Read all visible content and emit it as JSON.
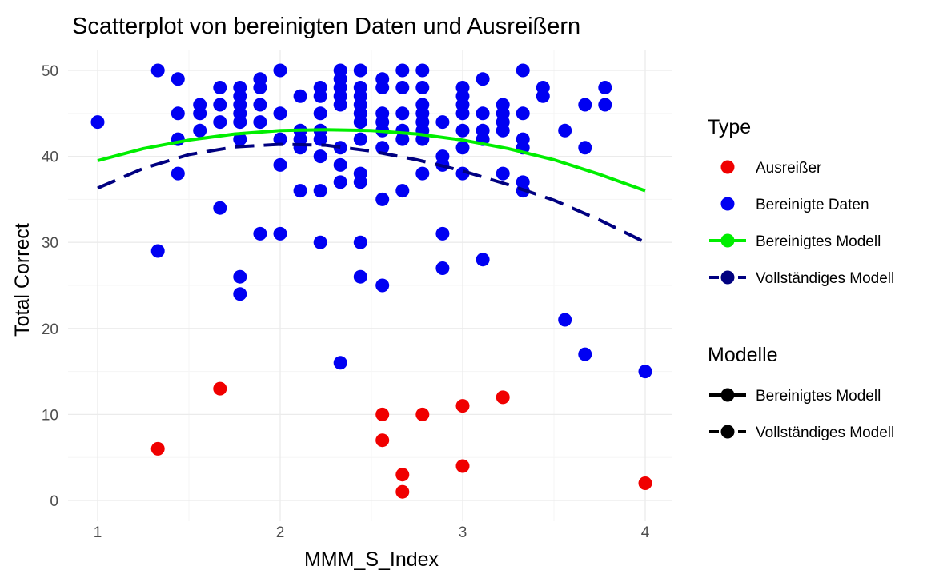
{
  "colors": {
    "outlier": "#f00000",
    "clean": "#0000f2",
    "clean_model": "#00ee00",
    "full_model": "#000080",
    "grid_major": "#ebebeb",
    "grid_minor": "#f5f5f5"
  },
  "legend": {
    "type": {
      "title": "Type",
      "items": [
        {
          "label": "Ausreißer",
          "kind": "point",
          "color": "#f00000"
        },
        {
          "label": "Bereinigte Daten",
          "kind": "point",
          "color": "#0000f2"
        },
        {
          "label": "Bereinigtes Modell",
          "kind": "line-point",
          "color": "#00ee00",
          "dash": "solid"
        },
        {
          "label": "Vollständiges Modell",
          "kind": "line-point",
          "color": "#000080",
          "dash": "dashed"
        }
      ]
    },
    "modelle": {
      "title": "Modelle",
      "items": [
        {
          "label": "Bereinigtes Modell",
          "kind": "line-point",
          "color": "#000000",
          "dash": "solid"
        },
        {
          "label": "Vollständiges Modell",
          "kind": "line-point",
          "color": "#000000",
          "dash": "dashed"
        }
      ]
    }
  },
  "chart_data": {
    "type": "scatter",
    "title": "Scatterplot von bereinigten Daten und Ausreißern",
    "xlabel": "MMM_S_Index",
    "ylabel": "Total Correct",
    "xlim": [
      1,
      4
    ],
    "ylim": [
      0,
      50
    ],
    "x_ticks": [
      "1",
      "2",
      "3",
      "4"
    ],
    "y_ticks": [
      "0",
      "10",
      "20",
      "30",
      "40",
      "50"
    ],
    "x_tick_values": [
      1,
      2,
      3,
      4
    ],
    "y_tick_values": [
      0,
      10,
      20,
      30,
      40,
      50
    ],
    "grid": true,
    "legend_position": "right",
    "series": [
      {
        "name": "Ausreißer",
        "color": "#f00000",
        "points": [
          [
            1.33,
            6
          ],
          [
            1.67,
            13
          ],
          [
            2.56,
            10
          ],
          [
            2.56,
            7
          ],
          [
            2.67,
            3
          ],
          [
            2.67,
            1
          ],
          [
            2.78,
            10
          ],
          [
            3.0,
            11
          ],
          [
            3.0,
            4
          ],
          [
            3.22,
            12
          ],
          [
            4.0,
            2
          ]
        ]
      },
      {
        "name": "Bereinigte Daten",
        "color": "#0000f2",
        "points": [
          [
            1.0,
            44
          ],
          [
            1.33,
            50
          ],
          [
            1.33,
            29
          ],
          [
            1.44,
            49
          ],
          [
            1.44,
            45
          ],
          [
            1.44,
            42
          ],
          [
            1.44,
            38
          ],
          [
            1.56,
            46
          ],
          [
            1.56,
            45
          ],
          [
            1.56,
            43
          ],
          [
            1.67,
            48
          ],
          [
            1.67,
            46
          ],
          [
            1.67,
            44
          ],
          [
            1.67,
            34
          ],
          [
            1.78,
            48
          ],
          [
            1.78,
            47
          ],
          [
            1.78,
            46
          ],
          [
            1.78,
            45
          ],
          [
            1.78,
            44
          ],
          [
            1.78,
            42
          ],
          [
            1.78,
            26
          ],
          [
            1.78,
            24
          ],
          [
            1.89,
            49
          ],
          [
            1.89,
            48
          ],
          [
            1.89,
            46
          ],
          [
            1.89,
            44
          ],
          [
            1.89,
            31
          ],
          [
            2.0,
            50
          ],
          [
            2.0,
            45
          ],
          [
            2.0,
            42
          ],
          [
            2.0,
            39
          ],
          [
            2.0,
            31
          ],
          [
            2.11,
            47
          ],
          [
            2.11,
            43
          ],
          [
            2.11,
            42
          ],
          [
            2.11,
            41
          ],
          [
            2.11,
            36
          ],
          [
            2.22,
            48
          ],
          [
            2.22,
            47
          ],
          [
            2.22,
            45
          ],
          [
            2.22,
            43
          ],
          [
            2.22,
            42
          ],
          [
            2.22,
            40
          ],
          [
            2.22,
            36
          ],
          [
            2.22,
            30
          ],
          [
            2.33,
            50
          ],
          [
            2.33,
            49
          ],
          [
            2.33,
            48
          ],
          [
            2.33,
            47
          ],
          [
            2.33,
            46
          ],
          [
            2.33,
            41
          ],
          [
            2.33,
            39
          ],
          [
            2.33,
            37
          ],
          [
            2.33,
            16
          ],
          [
            2.44,
            50
          ],
          [
            2.44,
            48
          ],
          [
            2.44,
            47
          ],
          [
            2.44,
            46
          ],
          [
            2.44,
            45
          ],
          [
            2.44,
            44
          ],
          [
            2.44,
            42
          ],
          [
            2.44,
            38
          ],
          [
            2.44,
            37
          ],
          [
            2.44,
            30
          ],
          [
            2.44,
            26
          ],
          [
            2.56,
            49
          ],
          [
            2.56,
            48
          ],
          [
            2.56,
            45
          ],
          [
            2.56,
            44
          ],
          [
            2.56,
            43
          ],
          [
            2.56,
            41
          ],
          [
            2.56,
            35
          ],
          [
            2.56,
            25
          ],
          [
            2.67,
            50
          ],
          [
            2.67,
            48
          ],
          [
            2.67,
            45
          ],
          [
            2.67,
            43
          ],
          [
            2.67,
            42
          ],
          [
            2.67,
            36
          ],
          [
            2.78,
            50
          ],
          [
            2.78,
            48
          ],
          [
            2.78,
            46
          ],
          [
            2.78,
            45
          ],
          [
            2.78,
            44
          ],
          [
            2.78,
            43
          ],
          [
            2.78,
            42
          ],
          [
            2.78,
            38
          ],
          [
            2.89,
            44
          ],
          [
            2.89,
            40
          ],
          [
            2.89,
            39
          ],
          [
            2.89,
            31
          ],
          [
            2.89,
            27
          ],
          [
            3.0,
            48
          ],
          [
            3.0,
            47
          ],
          [
            3.0,
            46
          ],
          [
            3.0,
            45
          ],
          [
            3.0,
            43
          ],
          [
            3.0,
            41
          ],
          [
            3.0,
            38
          ],
          [
            3.11,
            49
          ],
          [
            3.11,
            45
          ],
          [
            3.11,
            43
          ],
          [
            3.11,
            42
          ],
          [
            3.11,
            28
          ],
          [
            3.22,
            46
          ],
          [
            3.22,
            45
          ],
          [
            3.22,
            44
          ],
          [
            3.22,
            43
          ],
          [
            3.22,
            38
          ],
          [
            3.33,
            50
          ],
          [
            3.33,
            45
          ],
          [
            3.33,
            42
          ],
          [
            3.33,
            41
          ],
          [
            3.33,
            37
          ],
          [
            3.33,
            36
          ],
          [
            3.44,
            48
          ],
          [
            3.44,
            47
          ],
          [
            3.56,
            43
          ],
          [
            3.56,
            21
          ],
          [
            3.67,
            46
          ],
          [
            3.67,
            41
          ],
          [
            3.67,
            17
          ],
          [
            3.78,
            48
          ],
          [
            3.78,
            46
          ],
          [
            4.0,
            15
          ]
        ]
      }
    ],
    "lines": [
      {
        "name": "Bereinigtes Modell",
        "color": "#00ee00",
        "dash": "solid",
        "points": [
          [
            1.0,
            39.5
          ],
          [
            1.25,
            40.9
          ],
          [
            1.5,
            41.9
          ],
          [
            1.75,
            42.6
          ],
          [
            2.0,
            43.0
          ],
          [
            2.25,
            43.1
          ],
          [
            2.5,
            43.0
          ],
          [
            2.75,
            42.6
          ],
          [
            3.0,
            41.9
          ],
          [
            3.25,
            40.9
          ],
          [
            3.5,
            39.6
          ],
          [
            3.75,
            37.9
          ],
          [
            4.0,
            36.0
          ]
        ]
      },
      {
        "name": "Vollständiges Modell",
        "color": "#000080",
        "dash": "dashed",
        "points": [
          [
            1.0,
            36.3
          ],
          [
            1.25,
            38.6
          ],
          [
            1.5,
            40.2
          ],
          [
            1.75,
            41.1
          ],
          [
            2.0,
            41.4
          ],
          [
            2.25,
            41.3
          ],
          [
            2.5,
            40.6
          ],
          [
            2.75,
            39.6
          ],
          [
            3.0,
            38.3
          ],
          [
            3.25,
            36.7
          ],
          [
            3.5,
            34.9
          ],
          [
            3.75,
            32.6
          ],
          [
            4.0,
            30.0
          ]
        ]
      }
    ]
  }
}
